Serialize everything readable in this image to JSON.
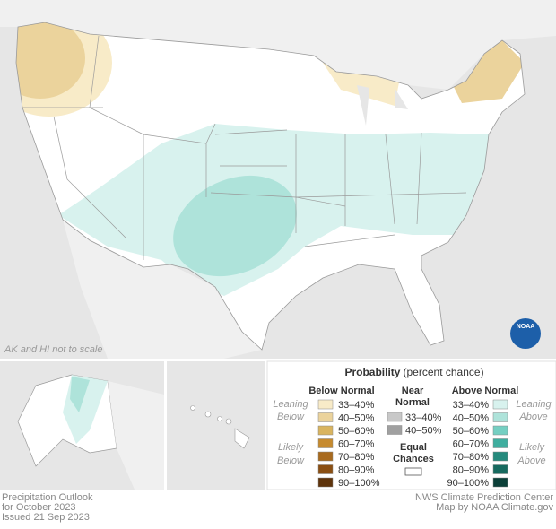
{
  "map_note": "AK and HI not to scale",
  "logo": "NOAA",
  "legend": {
    "title": "Probability",
    "subtitle": "(percent chance)",
    "below": {
      "heading": "Below Normal",
      "leaning": [
        "Leaning",
        "Below"
      ],
      "likely": [
        "Likely",
        "Below"
      ],
      "items": [
        {
          "label": "33–40%",
          "color": "#f8ebc8"
        },
        {
          "label": "40–50%",
          "color": "#ebd39c"
        },
        {
          "label": "50–60%",
          "color": "#d9b45f"
        },
        {
          "label": "60–70%",
          "color": "#c68a2e"
        },
        {
          "label": "70–80%",
          "color": "#a86a1e"
        },
        {
          "label": "80–90%",
          "color": "#8a4f13"
        },
        {
          "label": "90–100%",
          "color": "#5e330b"
        }
      ]
    },
    "near": {
      "heading": [
        "Near",
        "Normal"
      ],
      "items": [
        {
          "label": "33–40%",
          "color": "#c8c8c8"
        },
        {
          "label": "40–50%",
          "color": "#a0a0a0"
        }
      ]
    },
    "equal": {
      "label": [
        "Equal",
        "Chances"
      ],
      "color": "#ffffff"
    },
    "above": {
      "heading": "Above Normal",
      "leaning": [
        "Leaning",
        "Above"
      ],
      "likely": [
        "Likely",
        "Above"
      ],
      "items": [
        {
          "label": "33–40%",
          "color": "#d8f2ee"
        },
        {
          "label": "40–50%",
          "color": "#aee3da"
        },
        {
          "label": "50–60%",
          "color": "#75cfc2"
        },
        {
          "label": "60–70%",
          "color": "#3fae9f"
        },
        {
          "label": "70–80%",
          "color": "#258a7d"
        },
        {
          "label": "80–90%",
          "color": "#176a5f"
        },
        {
          "label": "90–100%",
          "color": "#0b3f38"
        }
      ]
    }
  },
  "footer": {
    "left": [
      "Precipitation Outlook",
      "for October 2023",
      "Issued 21 Sep 2023"
    ],
    "right": [
      "NWS Climate Prediction Center",
      "Map by NOAA Climate.gov"
    ]
  }
}
